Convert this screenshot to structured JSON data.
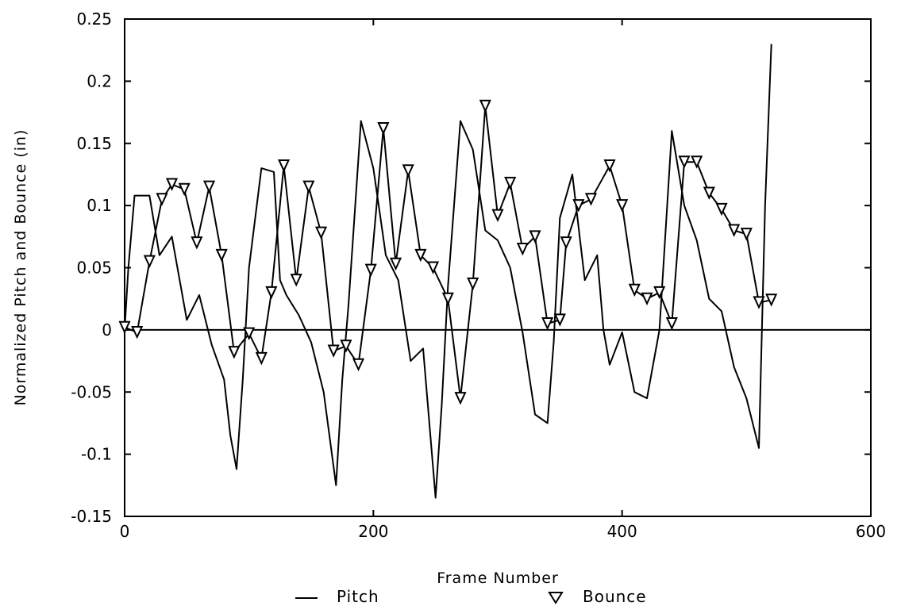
{
  "chart_data": {
    "type": "line",
    "title": "",
    "xlabel": "Frame Number",
    "ylabel": "Normalized Pitch and Bounce (in)",
    "xlim": [
      0,
      600
    ],
    "ylim": [
      -0.15,
      0.25
    ],
    "xticks": [
      0,
      200,
      400,
      600
    ],
    "xtick_labels": [
      "0",
      "200",
      "400",
      "600"
    ],
    "yticks": [
      -0.15,
      -0.1,
      -0.05,
      0,
      0.05,
      0.1,
      0.15,
      0.2,
      0.25
    ],
    "ytick_labels": [
      "-0.15",
      "-0.1",
      "-0.05",
      "0",
      "0.05",
      "0.1",
      "0.15",
      "0.2",
      "0.25"
    ],
    "grid": false,
    "zero_line": true,
    "legend_position": "bottom",
    "series": [
      {
        "name": "Pitch",
        "style": "solid line",
        "color": "#000000",
        "x": [
          0,
          3,
          8,
          20,
          28,
          38,
          50,
          60,
          70,
          80,
          85,
          90,
          95,
          100,
          110,
          120,
          125,
          130,
          140,
          150,
          160,
          170,
          175,
          180,
          190,
          200,
          205,
          210,
          220,
          230,
          240,
          250,
          255,
          260,
          270,
          280,
          290,
          300,
          310,
          320,
          330,
          340,
          345,
          350,
          360,
          370,
          380,
          385,
          390,
          400,
          410,
          420,
          430,
          440,
          445,
          450,
          460,
          470,
          480,
          490,
          500,
          510,
          515,
          520
        ],
        "y": [
          0.0,
          0.05,
          0.108,
          0.108,
          0.06,
          0.075,
          0.008,
          0.028,
          -0.012,
          -0.04,
          -0.085,
          -0.112,
          -0.04,
          0.05,
          0.13,
          0.127,
          0.04,
          0.028,
          0.012,
          -0.01,
          -0.05,
          -0.125,
          -0.04,
          0.02,
          0.168,
          0.13,
          0.095,
          0.06,
          0.04,
          -0.025,
          -0.015,
          -0.135,
          -0.06,
          0.035,
          0.168,
          0.145,
          0.08,
          0.072,
          0.05,
          -0.002,
          -0.068,
          -0.075,
          -0.01,
          0.09,
          0.125,
          0.04,
          0.06,
          0.0,
          -0.028,
          -0.002,
          -0.05,
          -0.055,
          0.0,
          0.16,
          0.13,
          0.1,
          0.072,
          0.025,
          0.015,
          -0.03,
          -0.055,
          -0.095,
          0.1,
          0.23
        ]
      },
      {
        "name": "Bounce",
        "style": "line with inverted triangle markers",
        "color": "#000000",
        "x": [
          0,
          10,
          20,
          30,
          38,
          48,
          58,
          68,
          78,
          88,
          100,
          110,
          118,
          128,
          138,
          148,
          158,
          168,
          178,
          188,
          198,
          208,
          218,
          228,
          238,
          248,
          260,
          270,
          280,
          290,
          300,
          310,
          320,
          330,
          340,
          350,
          355,
          365,
          375,
          390,
          400,
          410,
          420,
          430,
          440,
          450,
          460,
          470,
          480,
          490,
          500,
          510,
          520
        ],
        "y": [
          0.002,
          -0.002,
          0.055,
          0.105,
          0.117,
          0.113,
          0.07,
          0.115,
          0.06,
          -0.018,
          -0.003,
          -0.023,
          0.03,
          0.132,
          0.04,
          0.115,
          0.078,
          -0.017,
          -0.013,
          -0.028,
          0.048,
          0.162,
          0.053,
          0.128,
          0.06,
          0.05,
          0.025,
          -0.055,
          0.037,
          0.18,
          0.092,
          0.118,
          0.065,
          0.075,
          0.005,
          0.008,
          0.07,
          0.1,
          0.105,
          0.132,
          0.1,
          0.032,
          0.025,
          0.03,
          0.005,
          0.135,
          0.135,
          0.11,
          0.097,
          0.08,
          0.077,
          0.022,
          0.024
        ]
      }
    ]
  }
}
